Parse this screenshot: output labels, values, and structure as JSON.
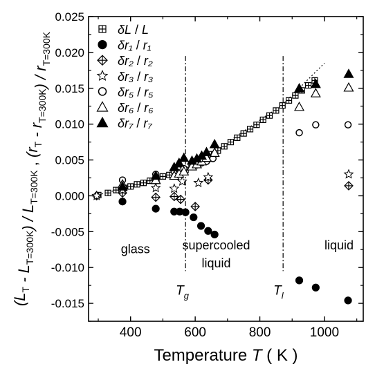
{
  "chart_data": {
    "type": "scatter",
    "xlabel": "Temperature T ( K )",
    "ylabel_left": "(L_T - L_T=300K) / L_T=300K",
    "ylabel_right": "(r_T - r_T=300K) / r_T=300K",
    "xlim": [
      270,
      1120
    ],
    "ylim": [
      -0.0175,
      0.025
    ],
    "x_ticks": [
      400,
      600,
      800,
      1000
    ],
    "y_ticks": [
      -0.015,
      -0.01,
      -0.005,
      0.0,
      0.005,
      0.01,
      0.015,
      0.02,
      0.025
    ],
    "x_tick_labels": [
      "400",
      "600",
      "800",
      "1000"
    ],
    "y_tick_labels": [
      "-0.015",
      "-0.010",
      "-0.005",
      "0.000",
      "0.005",
      "0.010",
      "0.015",
      "0.020",
      "0.025"
    ],
    "legend_position": "top-left",
    "vertical_lines": [
      {
        "x": 570,
        "label": "Tg"
      },
      {
        "x": 872,
        "label": "Tl"
      }
    ],
    "region_labels": [
      {
        "text": "glass",
        "x": 415,
        "y": -0.008
      },
      {
        "text": "supercooled",
        "x": 665,
        "y": -0.0075
      },
      {
        "text": "liquid",
        "x": 665,
        "y": -0.01
      },
      {
        "text": "liquid",
        "x": 1045,
        "y": -0.0075
      }
    ],
    "fit_line": {
      "style": "dotted",
      "points": [
        [
          290,
          0.0
        ],
        [
          570,
          0.0034
        ],
        [
          872,
          0.0128
        ],
        [
          1000,
          0.0185
        ]
      ]
    },
    "series": [
      {
        "name": "δL / L",
        "marker": "boxplus",
        "x": [
          300,
          330,
          355,
          380,
          400,
          420,
          440,
          460,
          480,
          500,
          520,
          540,
          555,
          570,
          590,
          610,
          630,
          650,
          670,
          690,
          710,
          730,
          750,
          770,
          790,
          810,
          830,
          850,
          870,
          890,
          910,
          930,
          950,
          970
        ],
        "y": [
          0.0001,
          0.0004,
          0.0008,
          0.0011,
          0.0013,
          0.0016,
          0.0018,
          0.0021,
          0.0024,
          0.0027,
          0.0029,
          0.0032,
          0.0034,
          0.0036,
          0.0041,
          0.0046,
          0.0052,
          0.0058,
          0.0063,
          0.0069,
          0.0075,
          0.0081,
          0.0087,
          0.0093,
          0.0099,
          0.0106,
          0.0112,
          0.0119,
          0.0126,
          0.0133,
          0.014,
          0.0147,
          0.0154,
          0.0161
        ]
      },
      {
        "name": "δr₁ / r₁",
        "marker": "filled-circle",
        "x": [
          375,
          478,
          535,
          552,
          570,
          595,
          618,
          640,
          660,
          922,
          973,
          1073
        ],
        "y": [
          -0.0008,
          -0.0018,
          -0.0022,
          -0.0022,
          -0.0023,
          -0.003,
          -0.0042,
          -0.0049,
          -0.0054,
          -0.0118,
          -0.0128,
          -0.0146
        ]
      },
      {
        "name": "δr₂ / r₂",
        "marker": "diamond-plus",
        "x": [
          295,
          375,
          478,
          535,
          555,
          600,
          640,
          1075
        ],
        "y": [
          0.0,
          0.0004,
          -0.0002,
          -0.0001,
          -0.0005,
          -0.0015,
          0.0022,
          0.0014
        ]
      },
      {
        "name": "δr₃ / r₃",
        "marker": "open-star",
        "x": [
          295,
          375,
          478,
          535,
          560,
          610,
          640,
          1075
        ],
        "y": [
          0.0,
          0.0008,
          0.0011,
          0.001,
          0.002,
          0.0018,
          0.0026,
          0.003
        ]
      },
      {
        "name": "δr₅ / r₅",
        "marker": "open-circle",
        "x": [
          375,
          478,
          535,
          550,
          565,
          590,
          605,
          620,
          635,
          655,
          922,
          973,
          1073
        ],
        "y": [
          0.0022,
          0.003,
          0.0034,
          0.0036,
          0.0038,
          0.0042,
          0.0043,
          0.0046,
          0.0048,
          0.0052,
          0.0088,
          0.0099,
          0.0099
        ]
      },
      {
        "name": "δr₆ / r₆",
        "marker": "open-triangle",
        "x": [
          375,
          478,
          535,
          550,
          565,
          590,
          605,
          620,
          635,
          660,
          922,
          973,
          1075
        ],
        "y": [
          0.0016,
          0.0022,
          0.0028,
          0.0031,
          0.0034,
          0.0041,
          0.0044,
          0.0048,
          0.0053,
          0.006,
          0.0124,
          0.0143,
          0.0151
        ]
      },
      {
        "name": "δr₇ / r₇",
        "marker": "filled-triangle",
        "x": [
          375,
          478,
          535,
          550,
          565,
          590,
          605,
          620,
          635,
          660,
          922,
          973,
          1075
        ],
        "y": [
          0.0013,
          0.0028,
          0.004,
          0.0046,
          0.0053,
          0.0049,
          0.0052,
          0.0056,
          0.0061,
          0.0072,
          0.015,
          0.0156,
          0.017
        ]
      }
    ]
  }
}
